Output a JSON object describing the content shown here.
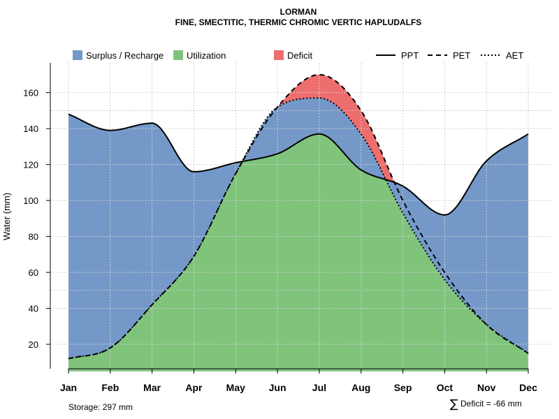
{
  "chart_data": {
    "type": "area",
    "title": "LORMAN",
    "subtitle": "FINE, SMECTITIC, THERMIC CHROMIC VERTIC HAPLUDALFS",
    "ylabel": "Water (mm)",
    "xlabel": "",
    "ylim": [
      5,
      175
    ],
    "yticks": [
      20,
      40,
      60,
      80,
      100,
      120,
      140,
      160
    ],
    "categories": [
      "Jan",
      "Feb",
      "Mar",
      "Apr",
      "May",
      "Jun",
      "Jul",
      "Aug",
      "Sep",
      "Oct",
      "Nov",
      "Dec"
    ],
    "series": [
      {
        "name": "PPT",
        "values": [
          148,
          139,
          143,
          116,
          121,
          126,
          137,
          117,
          108,
          92,
          122,
          137
        ]
      },
      {
        "name": "PET",
        "values": [
          12,
          18,
          42,
          69,
          115,
          152,
          170,
          150,
          100,
          60,
          31,
          15
        ]
      },
      {
        "name": "AET",
        "values": [
          12,
          18,
          42,
          69,
          115,
          152,
          157,
          137,
          93,
          56,
          31,
          15
        ]
      }
    ],
    "legend": {
      "surplus": "Surplus / Recharge",
      "utilization": "Utilization",
      "deficit": "Deficit",
      "ppt": "PPT",
      "pet": "PET",
      "aet": "AET"
    },
    "reference_lines": [
      150,
      50
    ],
    "grid": true
  },
  "colors": {
    "surplus": "#7499C9",
    "utilization": "#80C47C",
    "deficit": "#EE6D6D"
  },
  "footer": {
    "storage": "Storage: 297 mm",
    "sigma": "∑",
    "deficit": "Deficit = -66 mm"
  }
}
